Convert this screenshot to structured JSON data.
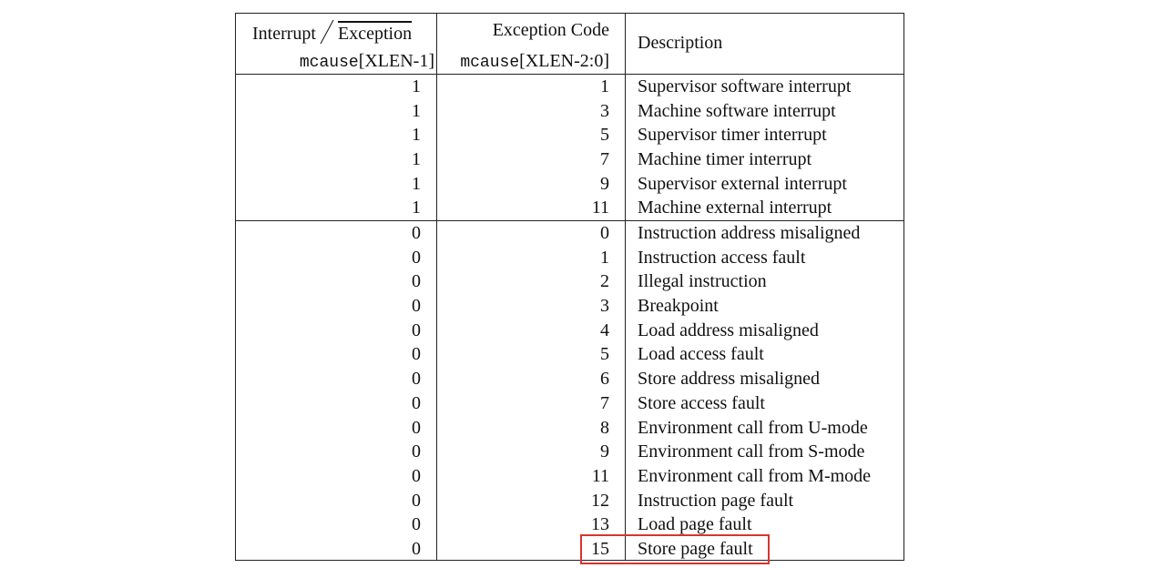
{
  "header": {
    "col1_line1_left": "Interrupt",
    "col1_line1_right": "Exception",
    "col1_line2_mono": "mcause",
    "col1_line2_rest": "[XLEN-1]",
    "col2_line1": "Exception Code",
    "col2_line2_mono": "mcause",
    "col2_line2_rest": "[XLEN-2:0]",
    "col3": "Description"
  },
  "interrupt_rows": [
    {
      "interrupt": "1",
      "code": "1",
      "description": "Supervisor software interrupt"
    },
    {
      "interrupt": "1",
      "code": "3",
      "description": "Machine software interrupt"
    },
    {
      "interrupt": "1",
      "code": "5",
      "description": "Supervisor timer interrupt"
    },
    {
      "interrupt": "1",
      "code": "7",
      "description": "Machine timer interrupt"
    },
    {
      "interrupt": "1",
      "code": "9",
      "description": "Supervisor external interrupt"
    },
    {
      "interrupt": "1",
      "code": "11",
      "description": "Machine external interrupt"
    }
  ],
  "exception_rows": [
    {
      "interrupt": "0",
      "code": "0",
      "description": "Instruction address misaligned"
    },
    {
      "interrupt": "0",
      "code": "1",
      "description": "Instruction access fault"
    },
    {
      "interrupt": "0",
      "code": "2",
      "description": "Illegal instruction"
    },
    {
      "interrupt": "0",
      "code": "3",
      "description": "Breakpoint"
    },
    {
      "interrupt": "0",
      "code": "4",
      "description": "Load address misaligned"
    },
    {
      "interrupt": "0",
      "code": "5",
      "description": "Load access fault"
    },
    {
      "interrupt": "0",
      "code": "6",
      "description": "Store address misaligned"
    },
    {
      "interrupt": "0",
      "code": "7",
      "description": "Store access fault"
    },
    {
      "interrupt": "0",
      "code": "8",
      "description": "Environment call from U-mode"
    },
    {
      "interrupt": "0",
      "code": "9",
      "description": "Environment call from S-mode"
    },
    {
      "interrupt": "0",
      "code": "11",
      "description": "Environment call from M-mode"
    },
    {
      "interrupt": "0",
      "code": "12",
      "description": "Instruction page fault"
    },
    {
      "interrupt": "0",
      "code": "13",
      "description": "Load page fault"
    },
    {
      "interrupt": "0",
      "code": "15",
      "description": "Store page fault"
    }
  ],
  "highlight": {
    "color": "#d9342f",
    "row_code": "15"
  }
}
